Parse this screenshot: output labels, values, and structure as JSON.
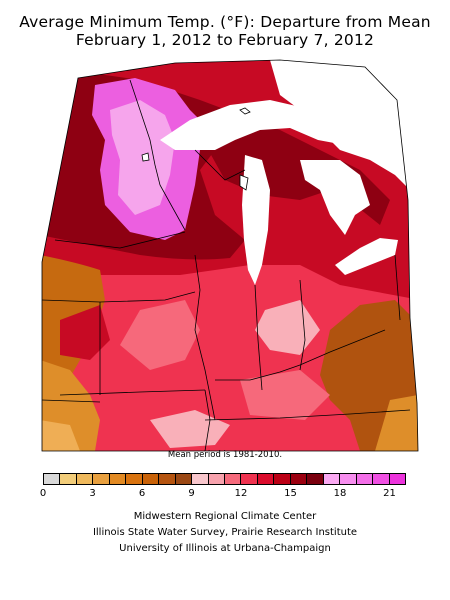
{
  "title_line1": "Average Minimum Temp. (°F): Departure from Mean",
  "title_line2": "February 1, 2012 to February 7, 2012",
  "mean_period_note": "Mean period is 1981-2010.",
  "legend": {
    "colors": [
      "#d9d9d9",
      "#f2cd7a",
      "#efb95c",
      "#e8a03f",
      "#e28a23",
      "#d9730f",
      "#c96208",
      "#b55410",
      "#9b4814",
      "#f8c6cc",
      "#f7a2ad",
      "#f56a7c",
      "#ef3350",
      "#db0c2c",
      "#bb0015",
      "#9b0010",
      "#7a000e",
      "#faa9f2",
      "#f78eef",
      "#f36ee8",
      "#f050e3",
      "#ec33dc"
    ],
    "tick_labels": [
      "0",
      "3",
      "6",
      "9",
      "12",
      "15",
      "18",
      "21"
    ]
  },
  "credits": [
    "Midwestern Regional Climate Center",
    "Illinois State Water Survey, Prairie Research Institute",
    "University of Illinois at Urbana-Champaign"
  ],
  "map_colors": {
    "lake": "#ffffff",
    "outline": "#000000",
    "pink_dark": "#ec5fe0",
    "pink_light": "#f6a5ec",
    "maroon": "#8e0012",
    "red_dark": "#c70a24",
    "red": "#ef3350",
    "red_mid": "#f6697b",
    "pink_red": "#f9b0b9",
    "orange": "#de8e2a",
    "orange_dark": "#c66a10",
    "brown": "#b0530f",
    "orange_light": "#efae55"
  }
}
